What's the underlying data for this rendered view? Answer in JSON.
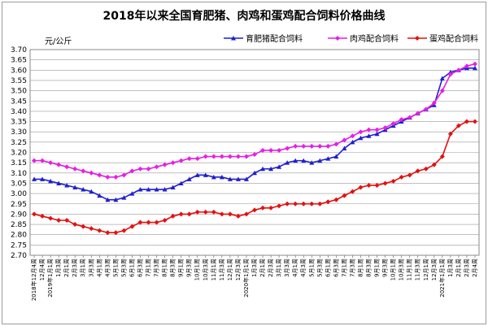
{
  "chart_data": {
    "type": "line",
    "title": "2018年以来全国育肥猪、肉鸡和蛋鸡配合饲料价格曲线",
    "ylabel": "元/公斤",
    "ylim": [
      2.7,
      3.7
    ],
    "yticks": [
      "2.70",
      "2.75",
      "2.80",
      "2.85",
      "2.90",
      "2.95",
      "3.00",
      "3.05",
      "3.10",
      "3.15",
      "3.20",
      "3.25",
      "3.30",
      "3.35",
      "3.40",
      "3.45",
      "3.50",
      "3.55",
      "3.60",
      "3.65",
      "3.70"
    ],
    "grid": "horizontal",
    "legend": "top-right",
    "x": [
      "2018年12月4周",
      "12月4周",
      "2019年1月1周",
      "1月3周",
      "2月1周",
      "2月3周",
      "3月1周",
      "3月3周",
      "4月1周",
      "4月3周",
      "5月1周",
      "5月3周",
      "6月1周",
      "6月3周",
      "7月1周",
      "7月3周",
      "8月1周",
      "8月3周",
      "9月1周",
      "9月3周",
      "10月1周",
      "10月3周",
      "11月1周",
      "11月3周",
      "12月1周",
      "12月3周",
      "2020年1月1周",
      "1月3周",
      "2月1周",
      "2月3周",
      "3月1周",
      "3月3周",
      "4月1周",
      "4月3周",
      "5月1周",
      "5月3周",
      "6月1周",
      "6月3周",
      "7月1周",
      "7月3周",
      "8月1周",
      "8月3周",
      "9月1周",
      "9月3周",
      "10月1周",
      "10月3周",
      "11月1周",
      "11月3周",
      "12月1周",
      "12月3周",
      "2021年1月1周",
      "1月3周",
      "2月1周",
      "2月3周",
      "2月4周"
    ],
    "series": [
      {
        "name": "育肥猪配合饲料",
        "color": "#1f1fd0",
        "marker": "triangle",
        "values": [
          3.07,
          3.07,
          3.06,
          3.05,
          3.04,
          3.03,
          3.02,
          3.01,
          2.99,
          2.97,
          2.97,
          2.98,
          3.0,
          3.02,
          3.02,
          3.02,
          3.02,
          3.03,
          3.05,
          3.07,
          3.09,
          3.09,
          3.08,
          3.08,
          3.07,
          3.07,
          3.07,
          3.1,
          3.12,
          3.12,
          3.13,
          3.15,
          3.16,
          3.16,
          3.15,
          3.16,
          3.17,
          3.18,
          3.22,
          3.25,
          3.27,
          3.28,
          3.29,
          3.31,
          3.33,
          3.35,
          3.37,
          3.39,
          3.41,
          3.43,
          3.56,
          3.59,
          3.6,
          3.61,
          3.61
        ]
      },
      {
        "name": "肉鸡配合饲料",
        "color": "#e61ee6",
        "marker": "diamond",
        "values": [
          3.16,
          3.16,
          3.15,
          3.14,
          3.13,
          3.12,
          3.11,
          3.1,
          3.09,
          3.08,
          3.08,
          3.09,
          3.11,
          3.12,
          3.12,
          3.13,
          3.14,
          3.15,
          3.16,
          3.17,
          3.17,
          3.18,
          3.18,
          3.18,
          3.18,
          3.18,
          3.18,
          3.19,
          3.21,
          3.21,
          3.21,
          3.22,
          3.23,
          3.23,
          3.23,
          3.23,
          3.23,
          3.24,
          3.26,
          3.28,
          3.3,
          3.31,
          3.31,
          3.32,
          3.34,
          3.36,
          3.37,
          3.39,
          3.41,
          3.44,
          3.5,
          3.58,
          3.6,
          3.62,
          3.63
        ]
      },
      {
        "name": "蛋鸡配合饲料",
        "color": "#e51010",
        "marker": "diamond",
        "values": [
          2.9,
          2.89,
          2.88,
          2.87,
          2.87,
          2.85,
          2.84,
          2.83,
          2.82,
          2.81,
          2.81,
          2.82,
          2.84,
          2.86,
          2.86,
          2.86,
          2.87,
          2.89,
          2.9,
          2.9,
          2.91,
          2.91,
          2.91,
          2.9,
          2.9,
          2.89,
          2.9,
          2.92,
          2.93,
          2.93,
          2.94,
          2.95,
          2.95,
          2.95,
          2.95,
          2.95,
          2.96,
          2.97,
          2.99,
          3.01,
          3.03,
          3.04,
          3.04,
          3.05,
          3.06,
          3.08,
          3.09,
          3.11,
          3.12,
          3.14,
          3.18,
          3.29,
          3.33,
          3.35,
          3.35
        ]
      }
    ]
  }
}
